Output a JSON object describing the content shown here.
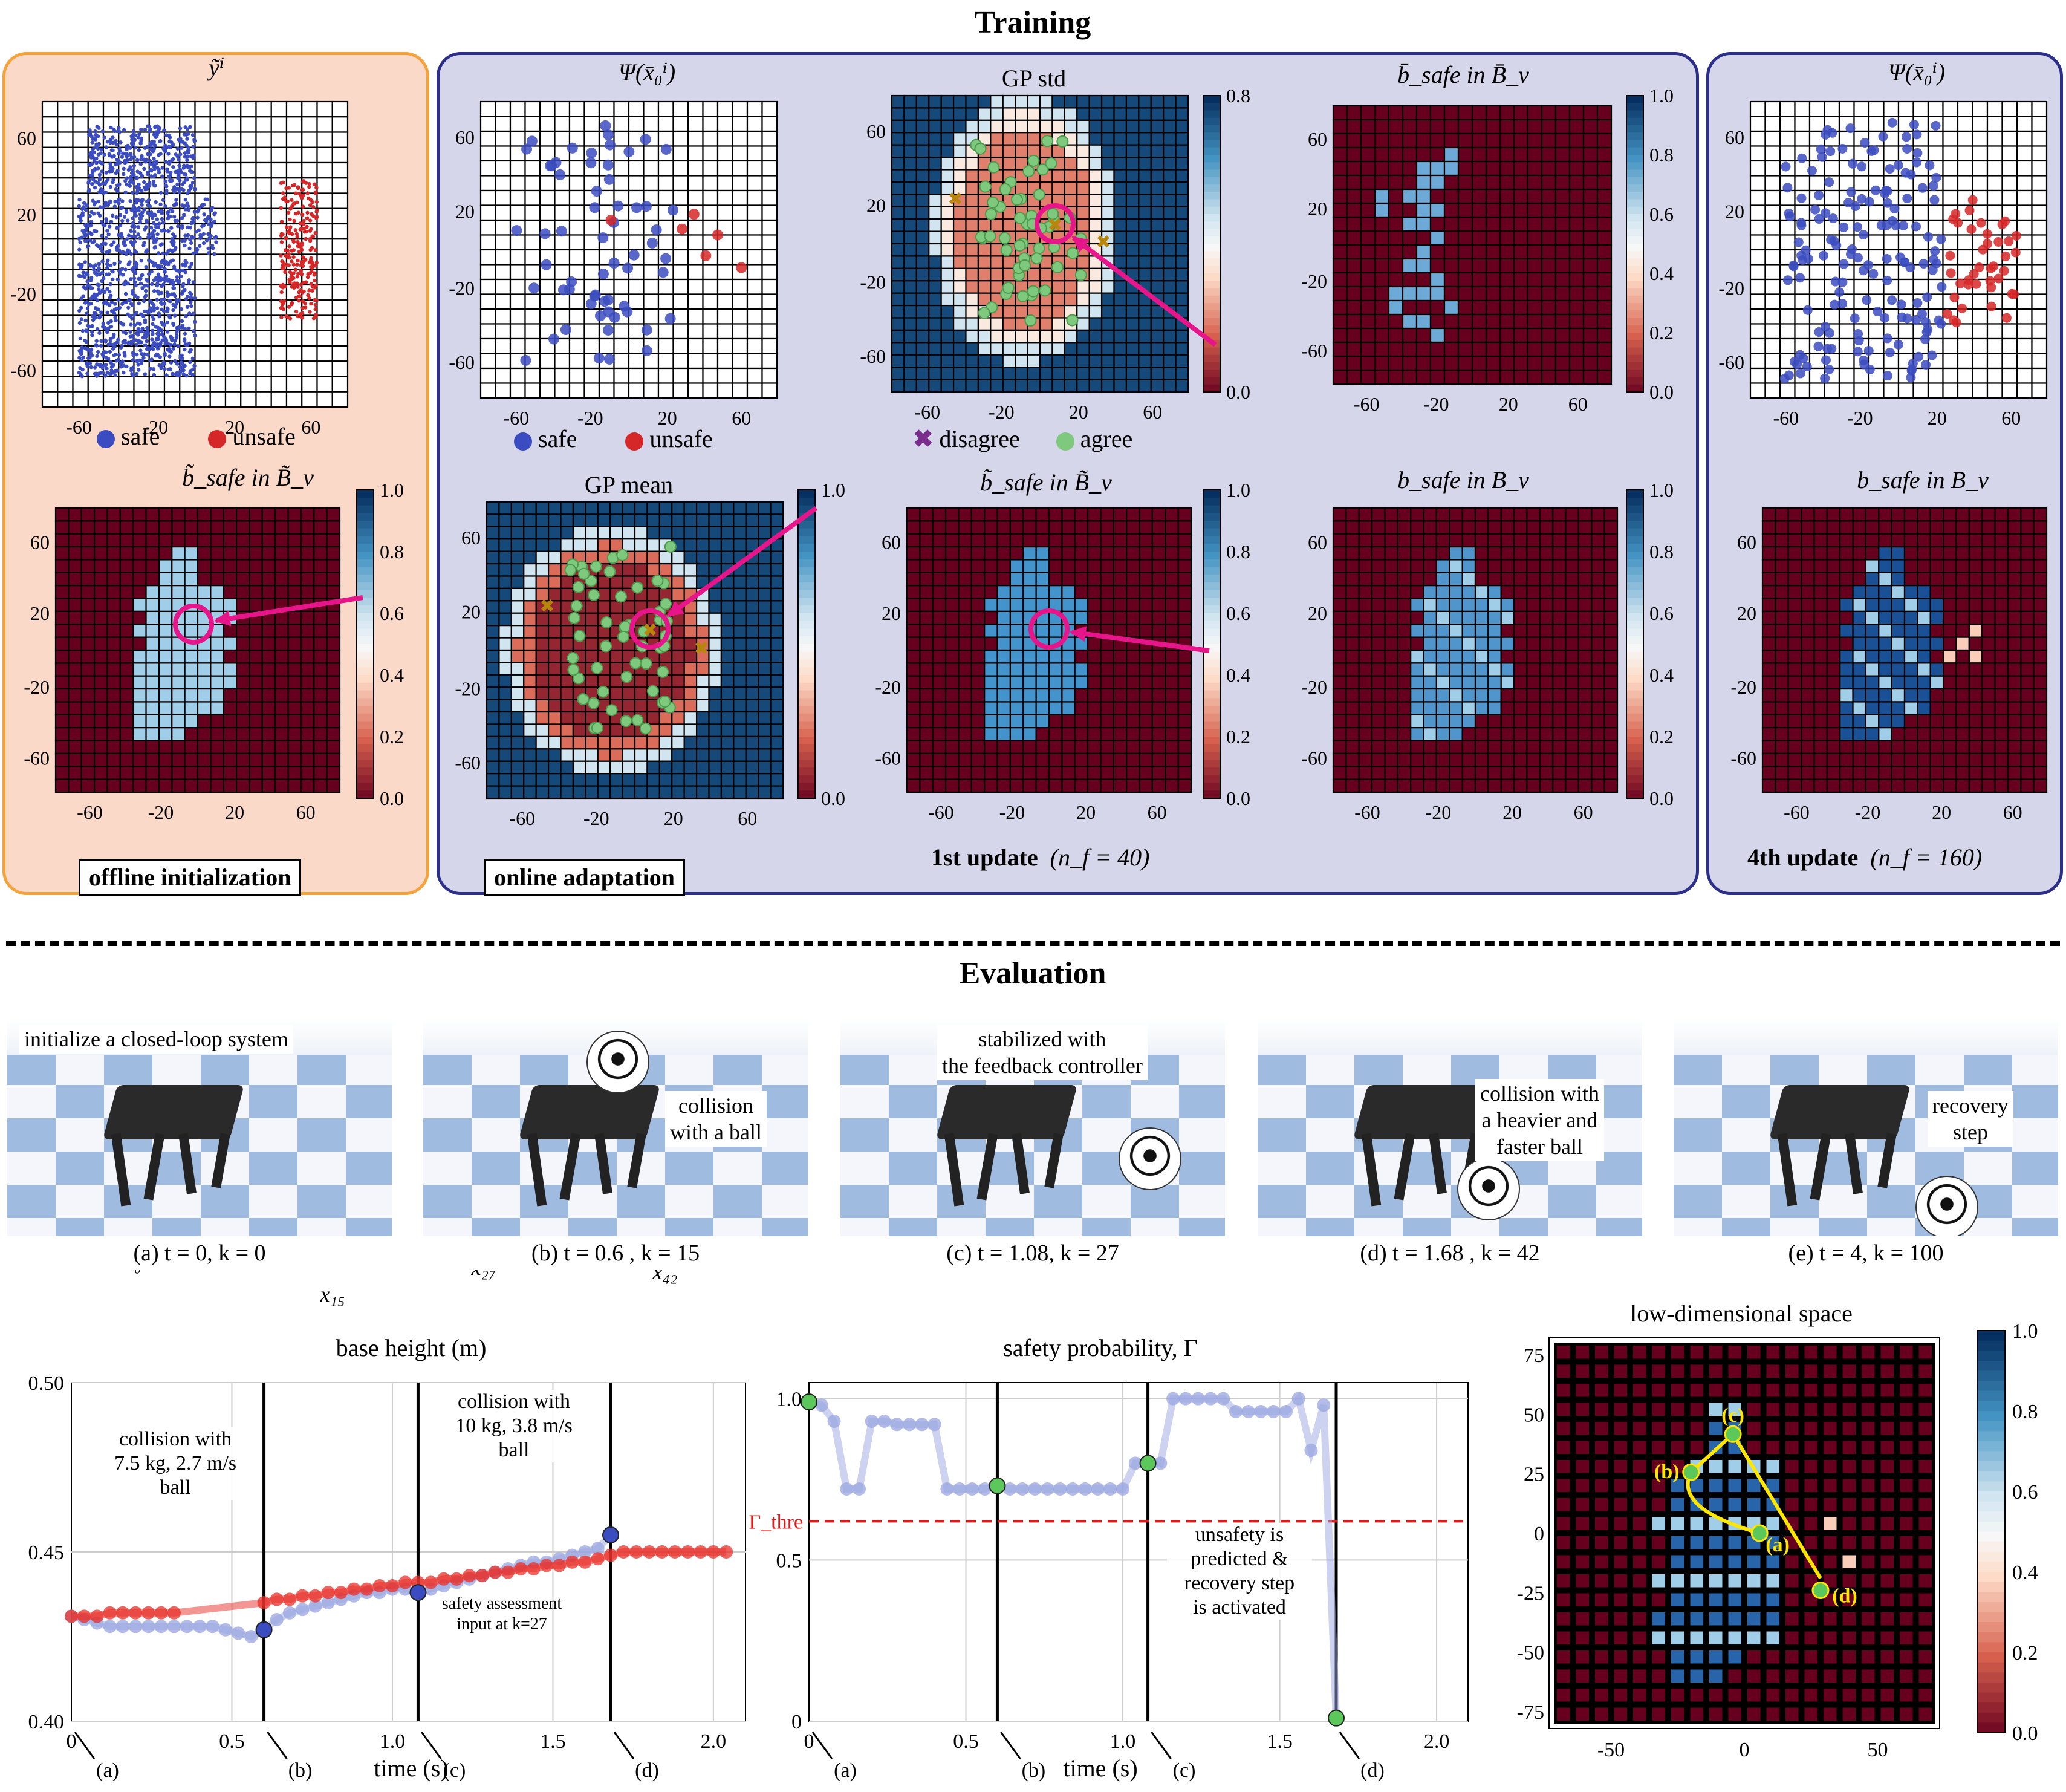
{
  "training": {
    "title": "Training",
    "offline_label": "offline initialization",
    "online_label": "online adaptation",
    "update1": "1st update",
    "update1_n": "(n_f = 40)",
    "update4": "4th update",
    "update4_n": "(n_f = 160)",
    "legend_safe": "safe",
    "legend_unsafe": "unsafe",
    "legend_disagree": "disagree",
    "legend_agree": "agree",
    "titles": {
      "y_tilde": "ỹⁱ",
      "psi": "Ψ(x̄₀ⁱ)",
      "gp_std": "GP std",
      "gp_mean": "GP mean",
      "b_bar": "b̄_safe in B̄_v",
      "b_tilde": "b̃_safe in B̃_v",
      "b_safe": "b_safe in B_v"
    },
    "ticks_2": [
      "-60",
      "-20",
      "20",
      "60"
    ],
    "ticks_3": [
      "-60",
      "-20",
      "20",
      "60"
    ],
    "cbar_ticks": [
      "1.0",
      "0.8",
      "0.6",
      "0.4",
      "0.2",
      "0.0"
    ],
    "cbar_std_ticks": [
      "0.8",
      "0.0"
    ],
    "colors": {
      "safe": "#3b4cc0",
      "unsafe": "#d62728",
      "agree": "#7fc97f",
      "disagree": "#f4d03f",
      "arrow": "#e6168a",
      "panel_orange": "#f4a23b",
      "panel_blue": "#2b2f8a",
      "offline_bg": "#fbd9c8",
      "online_bg": "#d6d6ea"
    }
  },
  "evaluation": {
    "title": "Evaluation",
    "scenes": [
      {
        "caption": "(a) t = 0, k = 0",
        "text": "initialize a closed-loop system"
      },
      {
        "caption": "(b) t = 0.6 , k = 15",
        "text": "collision\nwith a ball"
      },
      {
        "caption": "(c) t = 1.08, k = 27",
        "text": "stabilized with\nthe feedback controller"
      },
      {
        "caption": "(d) t = 1.68 , k = 42",
        "text": "collision with\na heavier and\nfaster ball"
      },
      {
        "caption": "(e) t = 4, k = 100",
        "text": "recovery\nstep"
      }
    ]
  },
  "plots": {
    "height": {
      "title": "base height (m)",
      "xlabel": "time (s)",
      "yticks": [
        "0.50",
        "0.45",
        "0.40"
      ],
      "xticks": [
        "0",
        "0.5",
        "1.0",
        "1.5",
        "2.0"
      ],
      "markers": [
        "(a)",
        "(b)",
        "(c)",
        "(d)"
      ],
      "ann1": "collision with\n7.5 kg, 2.7 m/s\nball",
      "ann2": "collision with\n10 kg, 3.8 m/s\nball",
      "x0": "x₀",
      "x15": "x₁₅",
      "x27": "x₂₇",
      "x42": "x₄₂",
      "input_note": "safety assessment\ninput at k=27"
    },
    "prob": {
      "title": "safety probability, Γ",
      "xlabel": "time (s)",
      "yticks": [
        "1.0",
        "0.5",
        "0"
      ],
      "xticks": [
        "0",
        "0.5",
        "1.0",
        "1.5",
        "2.0"
      ],
      "markers": [
        "(a)",
        "(b)",
        "(c)",
        "(d)"
      ],
      "thre": "Γ_thre",
      "note": "unsafety is\npredicted &\nrecovery step\nis activated"
    },
    "lowdim": {
      "title": "low-dimensional space",
      "yticks": [
        "75",
        "50",
        "25",
        "0",
        "-25",
        "-50",
        "-75"
      ],
      "xticks": [
        "-50",
        "0",
        "50"
      ],
      "cbar_ticks": [
        "1.0",
        "0.8",
        "0.6",
        "0.4",
        "0.2",
        "0.0"
      ],
      "points": [
        "(a)",
        "(b)",
        "(c)",
        "(d)"
      ]
    }
  },
  "chart_data": [
    {
      "type": "line",
      "title": "base height (m)",
      "xlabel": "time (s)",
      "ylabel": "",
      "xlim": [
        0,
        2.1
      ],
      "ylim": [
        0.4,
        0.5
      ],
      "series": [
        {
          "x": [
            0,
            0.04,
            0.08,
            0.12,
            0.16,
            0.2,
            0.24,
            0.28,
            0.32,
            0.36,
            0.4,
            0.44,
            0.48,
            0.52,
            0.56,
            0.6,
            0.64,
            0.68,
            0.72,
            0.76,
            0.8,
            0.84,
            0.88,
            0.92,
            0.96,
            1.0,
            1.04,
            1.08,
            1.12,
            1.16,
            1.2,
            1.24,
            1.28,
            1.32,
            1.36,
            1.4,
            1.44,
            1.48,
            1.52,
            1.56,
            1.6,
            1.64,
            1.68
          ],
          "values": [
            0.431,
            0.43,
            0.429,
            0.428,
            0.428,
            0.428,
            0.428,
            0.428,
            0.428,
            0.428,
            0.428,
            0.428,
            0.427,
            0.426,
            0.425,
            0.427,
            0.43,
            0.432,
            0.433,
            0.434,
            0.435,
            0.436,
            0.437,
            0.438,
            0.438,
            0.439,
            0.439,
            0.438,
            0.439,
            0.44,
            0.441,
            0.442,
            0.443,
            0.444,
            0.445,
            0.446,
            0.447,
            0.447,
            0.448,
            0.449,
            0.45,
            0.451,
            0.455
          ]
        },
        {
          "x": [
            0,
            0.04,
            0.08,
            0.12,
            0.16,
            0.2,
            0.24,
            0.28,
            0.32,
            0.6,
            0.64,
            0.68,
            0.72,
            0.76,
            0.8,
            0.84,
            0.88,
            0.92,
            0.96,
            1.0,
            1.04,
            1.08,
            1.12,
            1.16,
            1.2,
            1.24,
            1.28,
            1.32,
            1.36,
            1.4,
            1.44,
            1.48,
            1.52,
            1.56,
            1.6,
            1.64,
            1.68,
            1.72,
            1.76,
            1.8,
            1.84,
            1.88,
            1.92,
            1.96,
            2.0,
            2.04
          ],
          "values": [
            0.431,
            0.431,
            0.431,
            0.432,
            0.432,
            0.432,
            0.432,
            0.432,
            0.432,
            0.435,
            0.436,
            0.436,
            0.437,
            0.437,
            0.438,
            0.438,
            0.439,
            0.439,
            0.44,
            0.44,
            0.441,
            0.441,
            0.441,
            0.442,
            0.442,
            0.443,
            0.443,
            0.444,
            0.444,
            0.445,
            0.445,
            0.446,
            0.446,
            0.447,
            0.447,
            0.448,
            0.449,
            0.45,
            0.45,
            0.45,
            0.45,
            0.45,
            0.45,
            0.45,
            0.45,
            0.45
          ]
        }
      ]
    },
    {
      "type": "line",
      "title": "safety probability, Γ",
      "xlabel": "time (s)",
      "xlim": [
        0,
        2.1
      ],
      "ylim": [
        0,
        1.05
      ],
      "threshold": 0.62,
      "series": [
        {
          "x": [
            0,
            0.04,
            0.08,
            0.12,
            0.16,
            0.2,
            0.24,
            0.28,
            0.32,
            0.36,
            0.4,
            0.44,
            0.48,
            0.52,
            0.56,
            0.6,
            0.64,
            0.68,
            0.72,
            0.76,
            0.8,
            0.84,
            0.88,
            0.92,
            0.96,
            1.0,
            1.04,
            1.08,
            1.12,
            1.16,
            1.2,
            1.24,
            1.28,
            1.32,
            1.36,
            1.4,
            1.44,
            1.48,
            1.52,
            1.56,
            1.6,
            1.64,
            1.68
          ],
          "values": [
            0.99,
            0.98,
            0.93,
            0.72,
            0.72,
            0.93,
            0.93,
            0.92,
            0.92,
            0.92,
            0.92,
            0.72,
            0.72,
            0.72,
            0.72,
            0.73,
            0.72,
            0.72,
            0.72,
            0.72,
            0.72,
            0.72,
            0.72,
            0.72,
            0.72,
            0.72,
            0.8,
            0.8,
            0.8,
            1.0,
            1.0,
            1.0,
            1.0,
            1.0,
            0.96,
            0.96,
            0.96,
            0.96,
            0.96,
            1.0,
            0.84,
            0.98,
            0.01
          ]
        }
      ]
    }
  ]
}
